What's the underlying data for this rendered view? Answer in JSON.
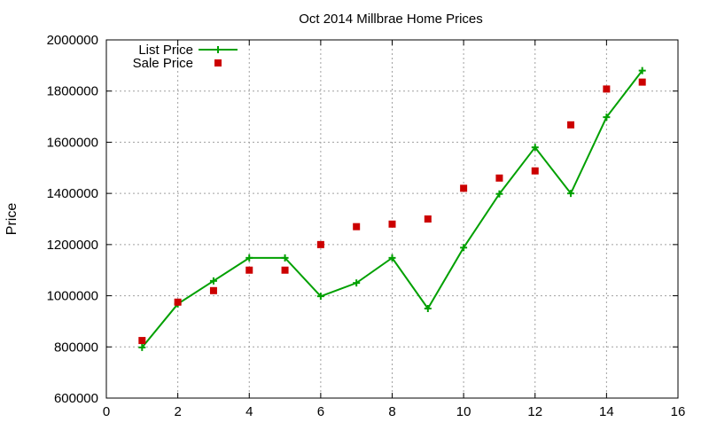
{
  "chart_data": {
    "type": "line",
    "title": "Oct 2014 Millbrae Home Prices",
    "xlabel": "",
    "ylabel": "Price",
    "xlim": [
      0,
      16
    ],
    "ylim": [
      600000,
      2000000
    ],
    "x_ticks": [
      0,
      2,
      4,
      6,
      8,
      10,
      12,
      14,
      16
    ],
    "y_ticks": [
      600000,
      800000,
      1000000,
      1200000,
      1400000,
      1600000,
      1800000,
      2000000
    ],
    "grid": true,
    "legend_position": "top-left",
    "series": [
      {
        "name": "List Price",
        "style": "line-with-plus-markers",
        "color": "#00a000",
        "x": [
          1,
          2,
          3,
          4,
          5,
          6,
          7,
          8,
          9,
          10,
          11,
          12,
          13,
          14,
          15
        ],
        "values": [
          798000,
          968000,
          1058000,
          1148000,
          1148000,
          998000,
          1050000,
          1148000,
          950000,
          1188000,
          1398000,
          1580000,
          1400000,
          1698000,
          1880000
        ]
      },
      {
        "name": "Sale Price",
        "style": "square-markers",
        "color": "#cc0000",
        "x": [
          1,
          2,
          3,
          4,
          5,
          6,
          7,
          8,
          9,
          10,
          11,
          12,
          13,
          14,
          15
        ],
        "values": [
          825000,
          975000,
          1020000,
          1100000,
          1100000,
          1200000,
          1270000,
          1280000,
          1300000,
          1420000,
          1460000,
          1488000,
          1668000,
          1808000,
          1835000
        ]
      }
    ]
  }
}
